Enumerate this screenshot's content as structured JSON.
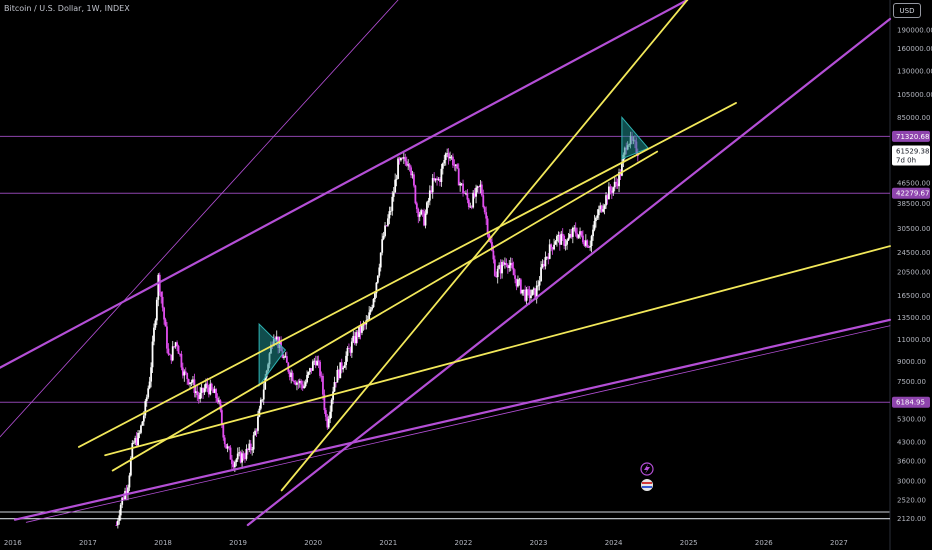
{
  "header": {
    "title": "Bitcoin / U.S. Dollar, 1W, INDEX",
    "currency_button": "USD"
  },
  "colors": {
    "background": "#000000",
    "trendline_purple": "#b44fd6",
    "trendline_yellow": "#f2e85a",
    "horizontal_line": "#8e44ad",
    "candle": "#ffffff",
    "triangle": "#1e8c8c"
  },
  "chart_data": {
    "type": "candlestick",
    "y_scale": "log",
    "ylim": [
      2000,
      250000
    ],
    "xlim": [
      2015.85,
      2027.7
    ],
    "x_ticks": [
      "2016",
      "2017",
      "2018",
      "2019",
      "2020",
      "2021",
      "2022",
      "2023",
      "2024",
      "2025",
      "2026",
      "2027"
    ],
    "y_ticks": [
      "190000.00",
      "160000.00",
      "130000.00",
      "105000.00",
      "85000.00",
      "61529.38",
      "46500.00",
      "38500.00",
      "30500.00",
      "24500.00",
      "20500.00",
      "16500.00",
      "13500.00",
      "11000.00",
      "9000.00",
      "7500.00",
      "5300.00",
      "4300.00",
      "3600.00",
      "3000.00",
      "2520.00",
      "2120.00"
    ],
    "price_path": [
      [
        2017.4,
        2000
      ],
      [
        2017.45,
        2400
      ],
      [
        2017.55,
        2900
      ],
      [
        2017.62,
        4200
      ],
      [
        2017.7,
        4500
      ],
      [
        2017.78,
        5800
      ],
      [
        2017.85,
        8000
      ],
      [
        2017.92,
        14000
      ],
      [
        2017.96,
        19800
      ],
      [
        2018.02,
        14500
      ],
      [
        2018.1,
        9000
      ],
      [
        2018.2,
        11000
      ],
      [
        2018.3,
        8000
      ],
      [
        2018.4,
        7500
      ],
      [
        2018.5,
        6400
      ],
      [
        2018.6,
        7200
      ],
      [
        2018.75,
        6400
      ],
      [
        2018.85,
        4200
      ],
      [
        2018.95,
        3600
      ],
      [
        2019.1,
        3800
      ],
      [
        2019.2,
        4100
      ],
      [
        2019.3,
        5500
      ],
      [
        2019.42,
        9000
      ],
      [
        2019.5,
        12000
      ],
      [
        2019.58,
        10000
      ],
      [
        2019.7,
        8300
      ],
      [
        2019.8,
        7500
      ],
      [
        2019.9,
        7200
      ],
      [
        2020.05,
        9300
      ],
      [
        2020.12,
        8000
      ],
      [
        2020.2,
        5000
      ],
      [
        2020.3,
        7500
      ],
      [
        2020.45,
        9300
      ],
      [
        2020.6,
        11500
      ],
      [
        2020.75,
        13000
      ],
      [
        2020.85,
        18000
      ],
      [
        2020.95,
        28000
      ],
      [
        2021.05,
        36000
      ],
      [
        2021.15,
        55000
      ],
      [
        2021.3,
        58000
      ],
      [
        2021.4,
        37000
      ],
      [
        2021.5,
        33000
      ],
      [
        2021.6,
        46000
      ],
      [
        2021.7,
        48000
      ],
      [
        2021.8,
        63000
      ],
      [
        2021.88,
        57000
      ],
      [
        2021.98,
        46000
      ],
      [
        2022.1,
        38000
      ],
      [
        2022.25,
        45000
      ],
      [
        2022.35,
        30000
      ],
      [
        2022.45,
        20000
      ],
      [
        2022.6,
        23000
      ],
      [
        2022.7,
        19500
      ],
      [
        2022.85,
        16500
      ],
      [
        2022.98,
        16800
      ],
      [
        2023.1,
        23000
      ],
      [
        2023.25,
        28000
      ],
      [
        2023.4,
        27000
      ],
      [
        2023.5,
        30000
      ],
      [
        2023.7,
        26500
      ],
      [
        2023.8,
        34500
      ],
      [
        2023.95,
        42500
      ],
      [
        2024.05,
        46000
      ],
      [
        2024.12,
        52000
      ],
      [
        2024.2,
        70000
      ],
      [
        2024.28,
        66000
      ],
      [
        2024.36,
        61529
      ]
    ],
    "current_price": "61529.38",
    "countdown": "7d 0h",
    "horizontal_levels": [
      {
        "value": 71320.68,
        "label": "71320.68"
      },
      {
        "value": 42279.67,
        "label": "42279.67"
      },
      {
        "value": 6184.95,
        "label": "6184.95"
      },
      {
        "value": 2120,
        "label": ""
      }
    ],
    "trendlines": [
      {
        "color": "purple",
        "width": 2.2,
        "points": [
          [
            2015.85,
            8500
          ],
          [
            2025.0,
            250000
          ]
        ]
      },
      {
        "color": "purple",
        "width": 0.8,
        "points": [
          [
            2015.85,
            4500
          ],
          [
            2021.15,
            250000
          ]
        ]
      },
      {
        "color": "purple",
        "width": 2.2,
        "points": [
          [
            2016.05,
            2100
          ],
          [
            2027.7,
            13200
          ]
        ]
      },
      {
        "color": "purple",
        "width": 0.8,
        "points": [
          [
            2016.2,
            2050
          ],
          [
            2027.7,
            12500
          ]
        ]
      },
      {
        "color": "purple",
        "width": 2.2,
        "points": [
          [
            2019.15,
            2000
          ],
          [
            2027.7,
            210000
          ]
        ]
      },
      {
        "color": "yellow",
        "width": 1.8,
        "points": [
          [
            2016.9,
            4100
          ],
          [
            2025.65,
            97000
          ]
        ]
      },
      {
        "color": "yellow",
        "width": 1.8,
        "points": [
          [
            2017.25,
            3800
          ],
          [
            2027.7,
            26000
          ]
        ]
      },
      {
        "color": "yellow",
        "width": 1.8,
        "points": [
          [
            2019.6,
            2750
          ],
          [
            2025.0,
            250000
          ]
        ]
      },
      {
        "color": "yellow",
        "width": 1.8,
        "points": [
          [
            2017.35,
            3300
          ],
          [
            2024.6,
            62000
          ]
        ]
      }
    ],
    "triangles": [
      {
        "points": [
          [
            2019.3,
            12700
          ],
          [
            2019.3,
            7200
          ],
          [
            2019.65,
            10000
          ]
        ]
      },
      {
        "points": [
          [
            2024.13,
            85000
          ],
          [
            2024.13,
            58000
          ],
          [
            2024.48,
            64000
          ]
        ]
      }
    ]
  }
}
